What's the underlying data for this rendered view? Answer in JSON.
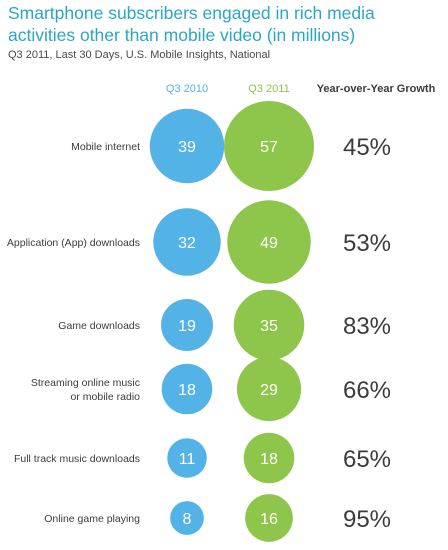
{
  "title": "Smartphone subscribers engaged in rich media activities other than mobile video (in millions)",
  "subtitle": "Q3 2011, Last 30 Days, U.S. Mobile Insights, National",
  "colors": {
    "q3_2010": "#54b3e6",
    "q3_2011": "#8ec54b",
    "title": "#2aa6c9",
    "text": "#3c3c3c"
  },
  "chart_data": {
    "type": "bubble",
    "title": "Smartphone subscribers engaged in rich media activities other than mobile video (in millions)",
    "subtitle": "Q3 2011, Last 30 Days, U.S. Mobile Insights, National",
    "column_headers": {
      "q3_2010": "Q3 2010",
      "q3_2011": "Q3 2011",
      "growth": "Year-over-Year Growth"
    },
    "series": [
      {
        "name": "Q3 2010",
        "values": [
          39,
          32,
          19,
          18,
          11,
          8
        ]
      },
      {
        "name": "Q3 2011",
        "values": [
          57,
          49,
          35,
          29,
          18,
          16
        ]
      }
    ],
    "rows": [
      {
        "label": "Mobile internet",
        "q3_2010": "39",
        "q3_2011": "57",
        "growth": "45%"
      },
      {
        "label": "Application (App) downloads",
        "q3_2010": "32",
        "q3_2011": "49",
        "growth": "53%"
      },
      {
        "label": "Game downloads",
        "q3_2010": "19",
        "q3_2011": "35",
        "growth": "83%"
      },
      {
        "label": "Streaming online music\nor mobile radio",
        "q3_2010": "18",
        "q3_2011": "29",
        "growth": "66%"
      },
      {
        "label": "Full track music downloads",
        "q3_2010": "11",
        "q3_2011": "18",
        "growth": "65%"
      },
      {
        "label": "Online game playing",
        "q3_2010": "8",
        "q3_2011": "16",
        "growth": "95%"
      }
    ]
  }
}
